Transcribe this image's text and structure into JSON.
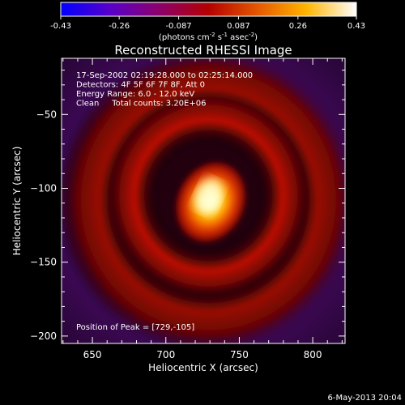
{
  "colorbar": {
    "ticks": [
      "-0.43",
      "-0.26",
      "-0.087",
      "0.087",
      "0.26",
      "0.43"
    ],
    "tick_values": [
      -0.43,
      -0.26,
      -0.087,
      0.087,
      0.26,
      0.43
    ],
    "range": [
      -0.43,
      0.43
    ],
    "units_pre": "(photons cm",
    "units_sup1": "-2",
    "units_mid": " s",
    "units_sup2": "-1",
    "units_mid2": " asec",
    "units_sup3": "-2",
    "units_post": ")",
    "colors": [
      "#0000ff",
      "#5a00c8",
      "#8c006e",
      "#b40000",
      "#e65a00",
      "#ffb400",
      "#ffffff"
    ]
  },
  "footer": {
    "date": "6-May-2013 20:04"
  },
  "chart_data": {
    "type": "heatmap",
    "title": "Reconstructed RHESSI Image",
    "xlabel": "Heliocentric X (arcsec)",
    "ylabel": "Heliocentric Y (arcsec)",
    "xlim": [
      629,
      822
    ],
    "ylim": [
      -205,
      -12
    ],
    "xticks": [
      650,
      700,
      750,
      800
    ],
    "yticks": [
      -50,
      -100,
      -150,
      -200
    ],
    "xtick_labels": [
      "650",
      "700",
      "750",
      "800"
    ],
    "ytick_labels": [
      "−50",
      "−100",
      "−150",
      "−200"
    ],
    "colormap": "red-temperature",
    "annotations": [
      "17-Sep-2002 02:19:28.000 to 02:25:14.000",
      "Detectors: 4F 5F 6F 7F 8F, Att 0",
      "Energy Range: 6.0 - 12.0 keV",
      "Clean     Total counts: 3.20E+06"
    ],
    "peak_label": "Position of Peak = [729,-105]",
    "peak": [
      729,
      -105
    ],
    "rings": [
      {
        "cx": 729,
        "cy": -105,
        "radius": 62,
        "intensity": 0.42
      },
      {
        "cx": 729,
        "cy": -108,
        "radius": 92,
        "intensity": 0.22
      }
    ]
  }
}
